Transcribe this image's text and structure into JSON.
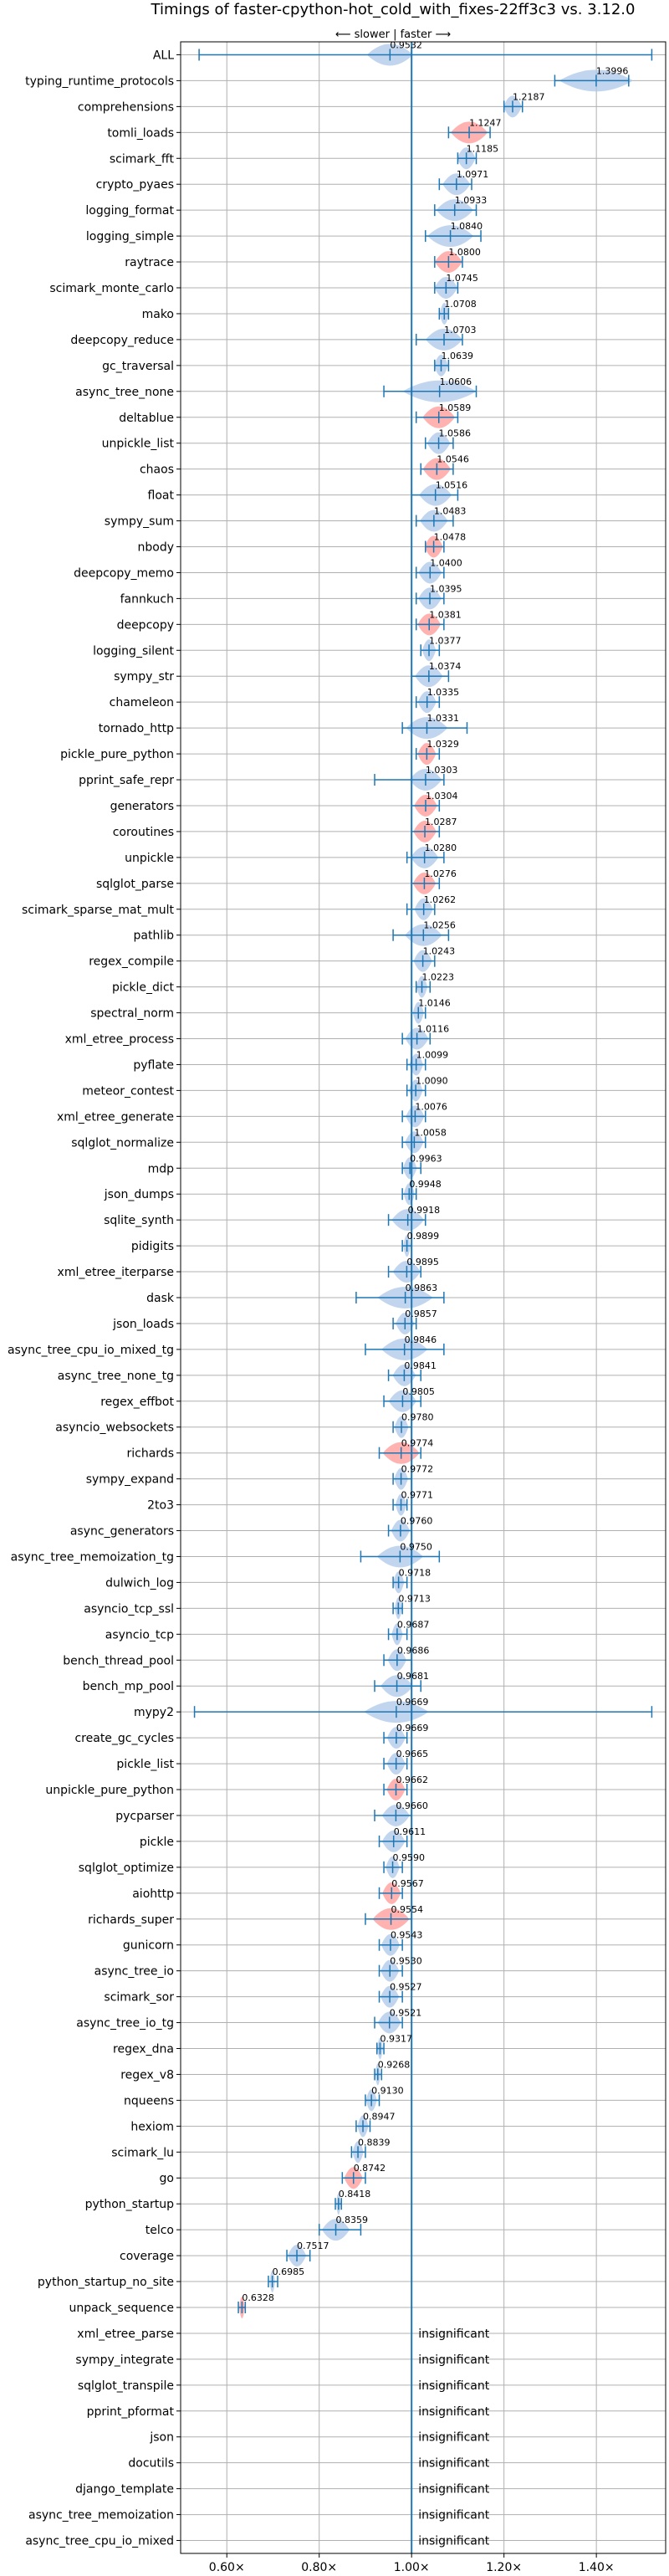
{
  "chart_data": {
    "type": "violin",
    "title": "Timings of faster-cpython-hot_cold_with_fixes-22ff3c3 vs. 3.12.0",
    "subtitle": "⟵ slower | faster ⟶",
    "xlim": [
      0.5,
      1.55
    ],
    "xticks": [
      "0.60×",
      "0.80×",
      "1.00×",
      "1.20×",
      "1.40×"
    ],
    "xtick_values": [
      0.6,
      0.8,
      1.0,
      1.2,
      1.4
    ],
    "reference_line": 1.0,
    "insignificant_label": "insignificant",
    "colors": {
      "normal": "#1f77b4",
      "slower": "#ff9896",
      "violin": "#aec7e8",
      "grid": "#b0b0b0"
    },
    "benchmarks": [
      {
        "name": "ALL",
        "value": 0.9532,
        "label": "0.9532",
        "min": 0.54,
        "max": 1.52,
        "spread": 0.05,
        "color": "normal"
      },
      {
        "name": "typing_runtime_protocols",
        "value": 1.3996,
        "label": "1.3996",
        "min": 1.31,
        "max": 1.47,
        "spread": 0.08,
        "color": "normal"
      },
      {
        "name": "comprehensions",
        "value": 1.2187,
        "label": "1.2187",
        "min": 1.2,
        "max": 1.24,
        "spread": 0.02,
        "color": "normal"
      },
      {
        "name": "tomli_loads",
        "value": 1.1247,
        "label": "1.1247",
        "min": 1.08,
        "max": 1.17,
        "spread": 0.04,
        "color": "slower"
      },
      {
        "name": "scimark_fft",
        "value": 1.1185,
        "label": "1.1185",
        "min": 1.1,
        "max": 1.14,
        "spread": 0.02,
        "color": "normal"
      },
      {
        "name": "crypto_pyaes",
        "value": 1.0971,
        "label": "1.0971",
        "min": 1.06,
        "max": 1.13,
        "spread": 0.03,
        "color": "normal"
      },
      {
        "name": "logging_format",
        "value": 1.0933,
        "label": "1.0933",
        "min": 1.05,
        "max": 1.14,
        "spread": 0.04,
        "color": "normal"
      },
      {
        "name": "logging_simple",
        "value": 1.084,
        "label": "1.0840",
        "min": 1.03,
        "max": 1.15,
        "spread": 0.05,
        "color": "normal"
      },
      {
        "name": "raytrace",
        "value": 1.08,
        "label": "1.0800",
        "min": 1.05,
        "max": 1.11,
        "spread": 0.03,
        "color": "slower"
      },
      {
        "name": "scimark_monte_carlo",
        "value": 1.0745,
        "label": "1.0745",
        "min": 1.05,
        "max": 1.1,
        "spread": 0.025,
        "color": "normal"
      },
      {
        "name": "mako",
        "value": 1.0708,
        "label": "1.0708",
        "min": 1.06,
        "max": 1.08,
        "spread": 0.01,
        "color": "normal"
      },
      {
        "name": "deepcopy_reduce",
        "value": 1.0703,
        "label": "1.0703",
        "min": 1.01,
        "max": 1.11,
        "spread": 0.04,
        "color": "normal"
      },
      {
        "name": "gc_traversal",
        "value": 1.0639,
        "label": "1.0639",
        "min": 1.05,
        "max": 1.08,
        "spread": 0.015,
        "color": "normal"
      },
      {
        "name": "async_tree_none",
        "value": 1.0606,
        "label": "1.0606",
        "min": 0.94,
        "max": 1.14,
        "spread": 0.08,
        "color": "normal"
      },
      {
        "name": "deltablue",
        "value": 1.0589,
        "label": "1.0589",
        "min": 1.01,
        "max": 1.1,
        "spread": 0.035,
        "color": "slower"
      },
      {
        "name": "unpickle_list",
        "value": 1.0586,
        "label": "1.0586",
        "min": 1.03,
        "max": 1.09,
        "spread": 0.025,
        "color": "normal"
      },
      {
        "name": "chaos",
        "value": 1.0546,
        "label": "1.0546",
        "min": 1.02,
        "max": 1.09,
        "spread": 0.03,
        "color": "slower"
      },
      {
        "name": "float",
        "value": 1.0516,
        "label": "1.0516",
        "min": 1.0,
        "max": 1.1,
        "spread": 0.035,
        "color": "normal"
      },
      {
        "name": "sympy_sum",
        "value": 1.0483,
        "label": "1.0483",
        "min": 1.01,
        "max": 1.09,
        "spread": 0.03,
        "color": "normal"
      },
      {
        "name": "nbody",
        "value": 1.0478,
        "label": "1.0478",
        "min": 1.03,
        "max": 1.07,
        "spread": 0.02,
        "color": "slower"
      },
      {
        "name": "deepcopy_memo",
        "value": 1.04,
        "label": "1.0400",
        "min": 1.01,
        "max": 1.07,
        "spread": 0.025,
        "color": "normal"
      },
      {
        "name": "fannkuch",
        "value": 1.0395,
        "label": "1.0395",
        "min": 1.01,
        "max": 1.07,
        "spread": 0.025,
        "color": "normal"
      },
      {
        "name": "deepcopy",
        "value": 1.0381,
        "label": "1.0381",
        "min": 1.01,
        "max": 1.07,
        "spread": 0.025,
        "color": "slower"
      },
      {
        "name": "logging_silent",
        "value": 1.0377,
        "label": "1.0377",
        "min": 1.02,
        "max": 1.06,
        "spread": 0.015,
        "color": "normal"
      },
      {
        "name": "sympy_str",
        "value": 1.0374,
        "label": "1.0374",
        "min": 1.0,
        "max": 1.08,
        "spread": 0.03,
        "color": "normal"
      },
      {
        "name": "chameleon",
        "value": 1.0335,
        "label": "1.0335",
        "min": 1.01,
        "max": 1.06,
        "spread": 0.02,
        "color": "normal"
      },
      {
        "name": "tornado_http",
        "value": 1.0331,
        "label": "1.0331",
        "min": 0.98,
        "max": 1.12,
        "spread": 0.045,
        "color": "normal"
      },
      {
        "name": "pickle_pure_python",
        "value": 1.0329,
        "label": "1.0329",
        "min": 1.01,
        "max": 1.06,
        "spread": 0.02,
        "color": "slower"
      },
      {
        "name": "pprint_safe_repr",
        "value": 1.0303,
        "label": "1.0303",
        "min": 0.92,
        "max": 1.07,
        "spread": 0.035,
        "color": "normal"
      },
      {
        "name": "generators",
        "value": 1.0304,
        "label": "1.0304",
        "min": 1.0,
        "max": 1.06,
        "spread": 0.025,
        "color": "slower"
      },
      {
        "name": "coroutines",
        "value": 1.0287,
        "label": "1.0287",
        "min": 1.0,
        "max": 1.06,
        "spread": 0.025,
        "color": "slower"
      },
      {
        "name": "unpickle",
        "value": 1.028,
        "label": "1.0280",
        "min": 0.99,
        "max": 1.07,
        "spread": 0.03,
        "color": "normal"
      },
      {
        "name": "sqlglot_parse",
        "value": 1.0276,
        "label": "1.0276",
        "min": 1.0,
        "max": 1.06,
        "spread": 0.025,
        "color": "slower"
      },
      {
        "name": "scimark_sparse_mat_mult",
        "value": 1.0262,
        "label": "1.0262",
        "min": 0.99,
        "max": 1.05,
        "spread": 0.02,
        "color": "normal"
      },
      {
        "name": "pathlib",
        "value": 1.0256,
        "label": "1.0256",
        "min": 0.96,
        "max": 1.08,
        "spread": 0.04,
        "color": "normal"
      },
      {
        "name": "regex_compile",
        "value": 1.0243,
        "label": "1.0243",
        "min": 1.0,
        "max": 1.05,
        "spread": 0.02,
        "color": "normal"
      },
      {
        "name": "pickle_dict",
        "value": 1.0223,
        "label": "1.0223",
        "min": 1.01,
        "max": 1.04,
        "spread": 0.012,
        "color": "normal"
      },
      {
        "name": "spectral_norm",
        "value": 1.0146,
        "label": "1.0146",
        "min": 1.0,
        "max": 1.03,
        "spread": 0.012,
        "color": "normal"
      },
      {
        "name": "xml_etree_process",
        "value": 1.0116,
        "label": "1.0116",
        "min": 0.98,
        "max": 1.04,
        "spread": 0.025,
        "color": "normal"
      },
      {
        "name": "pyflate",
        "value": 1.0099,
        "label": "1.0099",
        "min": 0.99,
        "max": 1.03,
        "spread": 0.015,
        "color": "normal"
      },
      {
        "name": "meteor_contest",
        "value": 1.009,
        "label": "1.0090",
        "min": 0.99,
        "max": 1.03,
        "spread": 0.015,
        "color": "normal"
      },
      {
        "name": "xml_etree_generate",
        "value": 1.0076,
        "label": "1.0076",
        "min": 0.98,
        "max": 1.03,
        "spread": 0.02,
        "color": "normal"
      },
      {
        "name": "sqlglot_normalize",
        "value": 1.0058,
        "label": "1.0058",
        "min": 0.98,
        "max": 1.03,
        "spread": 0.02,
        "color": "normal"
      },
      {
        "name": "mdp",
        "value": 0.9963,
        "label": "0.9963",
        "min": 0.98,
        "max": 1.02,
        "spread": 0.015,
        "color": "normal"
      },
      {
        "name": "json_dumps",
        "value": 0.9948,
        "label": "0.9948",
        "min": 0.98,
        "max": 1.01,
        "spread": 0.012,
        "color": "normal"
      },
      {
        "name": "sqlite_synth",
        "value": 0.9918,
        "label": "0.9918",
        "min": 0.95,
        "max": 1.03,
        "spread": 0.035,
        "color": "normal"
      },
      {
        "name": "pidigits",
        "value": 0.9899,
        "label": "0.9899",
        "min": 0.98,
        "max": 1.0,
        "spread": 0.008,
        "color": "normal"
      },
      {
        "name": "xml_etree_iterparse",
        "value": 0.9895,
        "label": "0.9895",
        "min": 0.95,
        "max": 1.02,
        "spread": 0.03,
        "color": "normal"
      },
      {
        "name": "dask",
        "value": 0.9863,
        "label": "0.9863",
        "min": 0.88,
        "max": 1.07,
        "spread": 0.06,
        "color": "normal"
      },
      {
        "name": "json_loads",
        "value": 0.9857,
        "label": "0.9857",
        "min": 0.96,
        "max": 1.01,
        "spread": 0.02,
        "color": "normal"
      },
      {
        "name": "async_tree_cpu_io_mixed_tg",
        "value": 0.9846,
        "label": "0.9846",
        "min": 0.9,
        "max": 1.07,
        "spread": 0.05,
        "color": "normal"
      },
      {
        "name": "async_tree_none_tg",
        "value": 0.9841,
        "label": "0.9841",
        "min": 0.95,
        "max": 1.02,
        "spread": 0.025,
        "color": "normal"
      },
      {
        "name": "regex_effbot",
        "value": 0.9805,
        "label": "0.9805",
        "min": 0.94,
        "max": 1.02,
        "spread": 0.03,
        "color": "normal"
      },
      {
        "name": "asyncio_websockets",
        "value": 0.978,
        "label": "0.9780",
        "min": 0.96,
        "max": 1.0,
        "spread": 0.015,
        "color": "normal"
      },
      {
        "name": "richards",
        "value": 0.9774,
        "label": "0.9774",
        "min": 0.93,
        "max": 1.02,
        "spread": 0.04,
        "color": "slower"
      },
      {
        "name": "sympy_expand",
        "value": 0.9772,
        "label": "0.9772",
        "min": 0.96,
        "max": 1.0,
        "spread": 0.015,
        "color": "normal"
      },
      {
        "name": "2to3",
        "value": 0.9771,
        "label": "0.9771",
        "min": 0.96,
        "max": 0.99,
        "spread": 0.012,
        "color": "normal"
      },
      {
        "name": "async_generators",
        "value": 0.976,
        "label": "0.9760",
        "min": 0.95,
        "max": 1.0,
        "spread": 0.02,
        "color": "normal"
      },
      {
        "name": "async_tree_memoization_tg",
        "value": 0.975,
        "label": "0.9750",
        "min": 0.89,
        "max": 1.06,
        "spread": 0.05,
        "color": "normal"
      },
      {
        "name": "dulwich_log",
        "value": 0.9718,
        "label": "0.9718",
        "min": 0.96,
        "max": 0.99,
        "spread": 0.012,
        "color": "normal"
      },
      {
        "name": "asyncio_tcp_ssl",
        "value": 0.9713,
        "label": "0.9713",
        "min": 0.96,
        "max": 0.98,
        "spread": 0.008,
        "color": "normal"
      },
      {
        "name": "asyncio_tcp",
        "value": 0.9687,
        "label": "0.9687",
        "min": 0.95,
        "max": 0.99,
        "spread": 0.012,
        "color": "normal"
      },
      {
        "name": "bench_thread_pool",
        "value": 0.9686,
        "label": "0.9686",
        "min": 0.94,
        "max": 1.0,
        "spread": 0.02,
        "color": "normal"
      },
      {
        "name": "bench_mp_pool",
        "value": 0.9681,
        "label": "0.9681",
        "min": 0.92,
        "max": 1.02,
        "spread": 0.035,
        "color": "normal"
      },
      {
        "name": "mypy2",
        "value": 0.9669,
        "label": "0.9669",
        "min": 0.53,
        "max": 1.52,
        "spread": 0.07,
        "color": "normal"
      },
      {
        "name": "create_gc_cycles",
        "value": 0.9669,
        "label": "0.9669",
        "min": 0.94,
        "max": 0.99,
        "spread": 0.02,
        "color": "normal"
      },
      {
        "name": "pickle_list",
        "value": 0.9665,
        "label": "0.9665",
        "min": 0.94,
        "max": 0.99,
        "spread": 0.02,
        "color": "normal"
      },
      {
        "name": "unpickle_pure_python",
        "value": 0.9662,
        "label": "0.9662",
        "min": 0.94,
        "max": 0.99,
        "spread": 0.02,
        "color": "slower"
      },
      {
        "name": "pycparser",
        "value": 0.966,
        "label": "0.9660",
        "min": 0.92,
        "max": 1.0,
        "spread": 0.03,
        "color": "normal"
      },
      {
        "name": "pickle",
        "value": 0.9611,
        "label": "0.9611",
        "min": 0.93,
        "max": 0.99,
        "spread": 0.025,
        "color": "normal"
      },
      {
        "name": "sqlglot_optimize",
        "value": 0.959,
        "label": "0.9590",
        "min": 0.94,
        "max": 0.98,
        "spread": 0.015,
        "color": "normal"
      },
      {
        "name": "aiohttp",
        "value": 0.9567,
        "label": "0.9567",
        "min": 0.93,
        "max": 0.98,
        "spread": 0.02,
        "color": "slower"
      },
      {
        "name": "richards_super",
        "value": 0.9554,
        "label": "0.9554",
        "min": 0.9,
        "max": 1.0,
        "spread": 0.04,
        "color": "slower"
      },
      {
        "name": "gunicorn",
        "value": 0.9543,
        "label": "0.9543",
        "min": 0.93,
        "max": 0.98,
        "spread": 0.02,
        "color": "normal"
      },
      {
        "name": "async_tree_io",
        "value": 0.953,
        "label": "0.9530",
        "min": 0.93,
        "max": 0.98,
        "spread": 0.02,
        "color": "normal"
      },
      {
        "name": "scimark_sor",
        "value": 0.9527,
        "label": "0.9527",
        "min": 0.93,
        "max": 0.98,
        "spread": 0.02,
        "color": "normal"
      },
      {
        "name": "async_tree_io_tg",
        "value": 0.9521,
        "label": "0.9521",
        "min": 0.92,
        "max": 0.98,
        "spread": 0.025,
        "color": "normal"
      },
      {
        "name": "regex_dna",
        "value": 0.9317,
        "label": "0.9317",
        "min": 0.925,
        "max": 0.94,
        "spread": 0.006,
        "color": "normal"
      },
      {
        "name": "regex_v8",
        "value": 0.9268,
        "label": "0.9268",
        "min": 0.92,
        "max": 0.935,
        "spread": 0.006,
        "color": "normal"
      },
      {
        "name": "nqueens",
        "value": 0.913,
        "label": "0.9130",
        "min": 0.9,
        "max": 0.93,
        "spread": 0.012,
        "color": "normal"
      },
      {
        "name": "hexiom",
        "value": 0.8947,
        "label": "0.8947",
        "min": 0.88,
        "max": 0.91,
        "spread": 0.012,
        "color": "normal"
      },
      {
        "name": "scimark_lu",
        "value": 0.8839,
        "label": "0.8839",
        "min": 0.87,
        "max": 0.9,
        "spread": 0.012,
        "color": "normal"
      },
      {
        "name": "go",
        "value": 0.8742,
        "label": "0.8742",
        "min": 0.85,
        "max": 0.9,
        "spread": 0.02,
        "color": "slower"
      },
      {
        "name": "python_startup",
        "value": 0.8418,
        "label": "0.8418",
        "min": 0.835,
        "max": 0.848,
        "spread": 0.005,
        "color": "normal"
      },
      {
        "name": "telco",
        "value": 0.8359,
        "label": "0.8359",
        "min": 0.8,
        "max": 0.89,
        "spread": 0.03,
        "color": "normal"
      },
      {
        "name": "coverage",
        "value": 0.7517,
        "label": "0.7517",
        "min": 0.73,
        "max": 0.78,
        "spread": 0.02,
        "color": "normal"
      },
      {
        "name": "python_startup_no_site",
        "value": 0.6985,
        "label": "0.6985",
        "min": 0.69,
        "max": 0.71,
        "spread": 0.006,
        "color": "normal"
      },
      {
        "name": "unpack_sequence",
        "value": 0.6328,
        "label": "0.6328",
        "min": 0.625,
        "max": 0.64,
        "spread": 0.006,
        "color": "slower"
      },
      {
        "name": "xml_etree_parse",
        "insignificant": true
      },
      {
        "name": "sympy_integrate",
        "insignificant": true
      },
      {
        "name": "sqlglot_transpile",
        "insignificant": true
      },
      {
        "name": "pprint_pformat",
        "insignificant": true
      },
      {
        "name": "json",
        "insignificant": true
      },
      {
        "name": "docutils",
        "insignificant": true
      },
      {
        "name": "django_template",
        "insignificant": true
      },
      {
        "name": "async_tree_memoization",
        "insignificant": true
      },
      {
        "name": "async_tree_cpu_io_mixed",
        "insignificant": true
      }
    ]
  }
}
